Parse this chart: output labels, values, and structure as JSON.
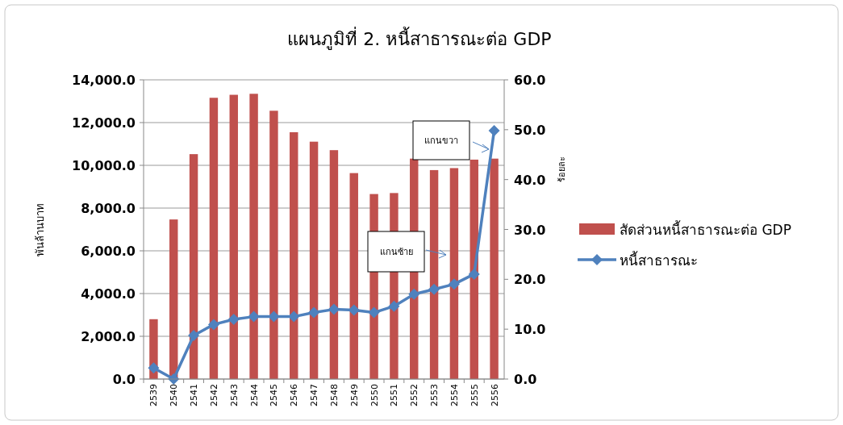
{
  "chart_data": {
    "type": "bar",
    "title": "แผนภูมิที่ 2. หนี้สาธารณะต่อ GDP",
    "ylabel": "พันล้านบาท",
    "y2label": "ร้อยละ",
    "categories": [
      "2539",
      "2540",
      "2541",
      "2542",
      "2543",
      "2544",
      "2545",
      "2546",
      "2547",
      "2548",
      "2549",
      "2550",
      "2551",
      "2552",
      "2553",
      "2554",
      "2555",
      "2556"
    ],
    "series": [
      {
        "name": "สัดส่วนหนี้สาธารณะต่อ GDP",
        "axis": "y2",
        "color": "#c0504d",
        "values": [
          12.0,
          32.0,
          45.1,
          56.4,
          57.0,
          57.2,
          53.8,
          49.5,
          47.6,
          45.9,
          41.3,
          37.1,
          37.3,
          44.2,
          41.9,
          42.3,
          44.0,
          44.2
        ]
      },
      {
        "name": "หนี้สาธารณะ",
        "type": "line",
        "color": "#4f81bd",
        "marker": "diamond",
        "values": [
          520,
          0,
          2040,
          2550,
          2790,
          2920,
          2920,
          2920,
          3110,
          3260,
          3230,
          3110,
          3410,
          3970,
          4200,
          4440,
          4910,
          11620
        ]
      }
    ],
    "ylim": [
      0,
      14000
    ],
    "yticks": [
      {
        "value": 0,
        "label": "0.0"
      },
      {
        "value": 2000,
        "label": "2,000.0"
      },
      {
        "value": 4000,
        "label": "4,000.0"
      },
      {
        "value": 6000,
        "label": "6,000.0"
      },
      {
        "value": 8000,
        "label": "8,000.0"
      },
      {
        "value": 10000,
        "label": "10,000.0"
      },
      {
        "value": 12000,
        "label": "12,000.0"
      },
      {
        "value": 14000,
        "label": "14,000.0"
      }
    ],
    "y2lim": [
      0,
      60
    ],
    "y2ticks": [
      {
        "value": 0,
        "label": "0.0"
      },
      {
        "value": 10,
        "label": "10.0"
      },
      {
        "value": 20,
        "label": "20.0"
      },
      {
        "value": 30,
        "label": "30.0"
      },
      {
        "value": 40,
        "label": "40.0"
      },
      {
        "value": 50,
        "label": "50.0"
      },
      {
        "value": 60,
        "label": "60.0"
      }
    ],
    "annotations": [
      "แกนขวา",
      "แกนซ้าย"
    ],
    "grid": "y",
    "legend": "right"
  }
}
